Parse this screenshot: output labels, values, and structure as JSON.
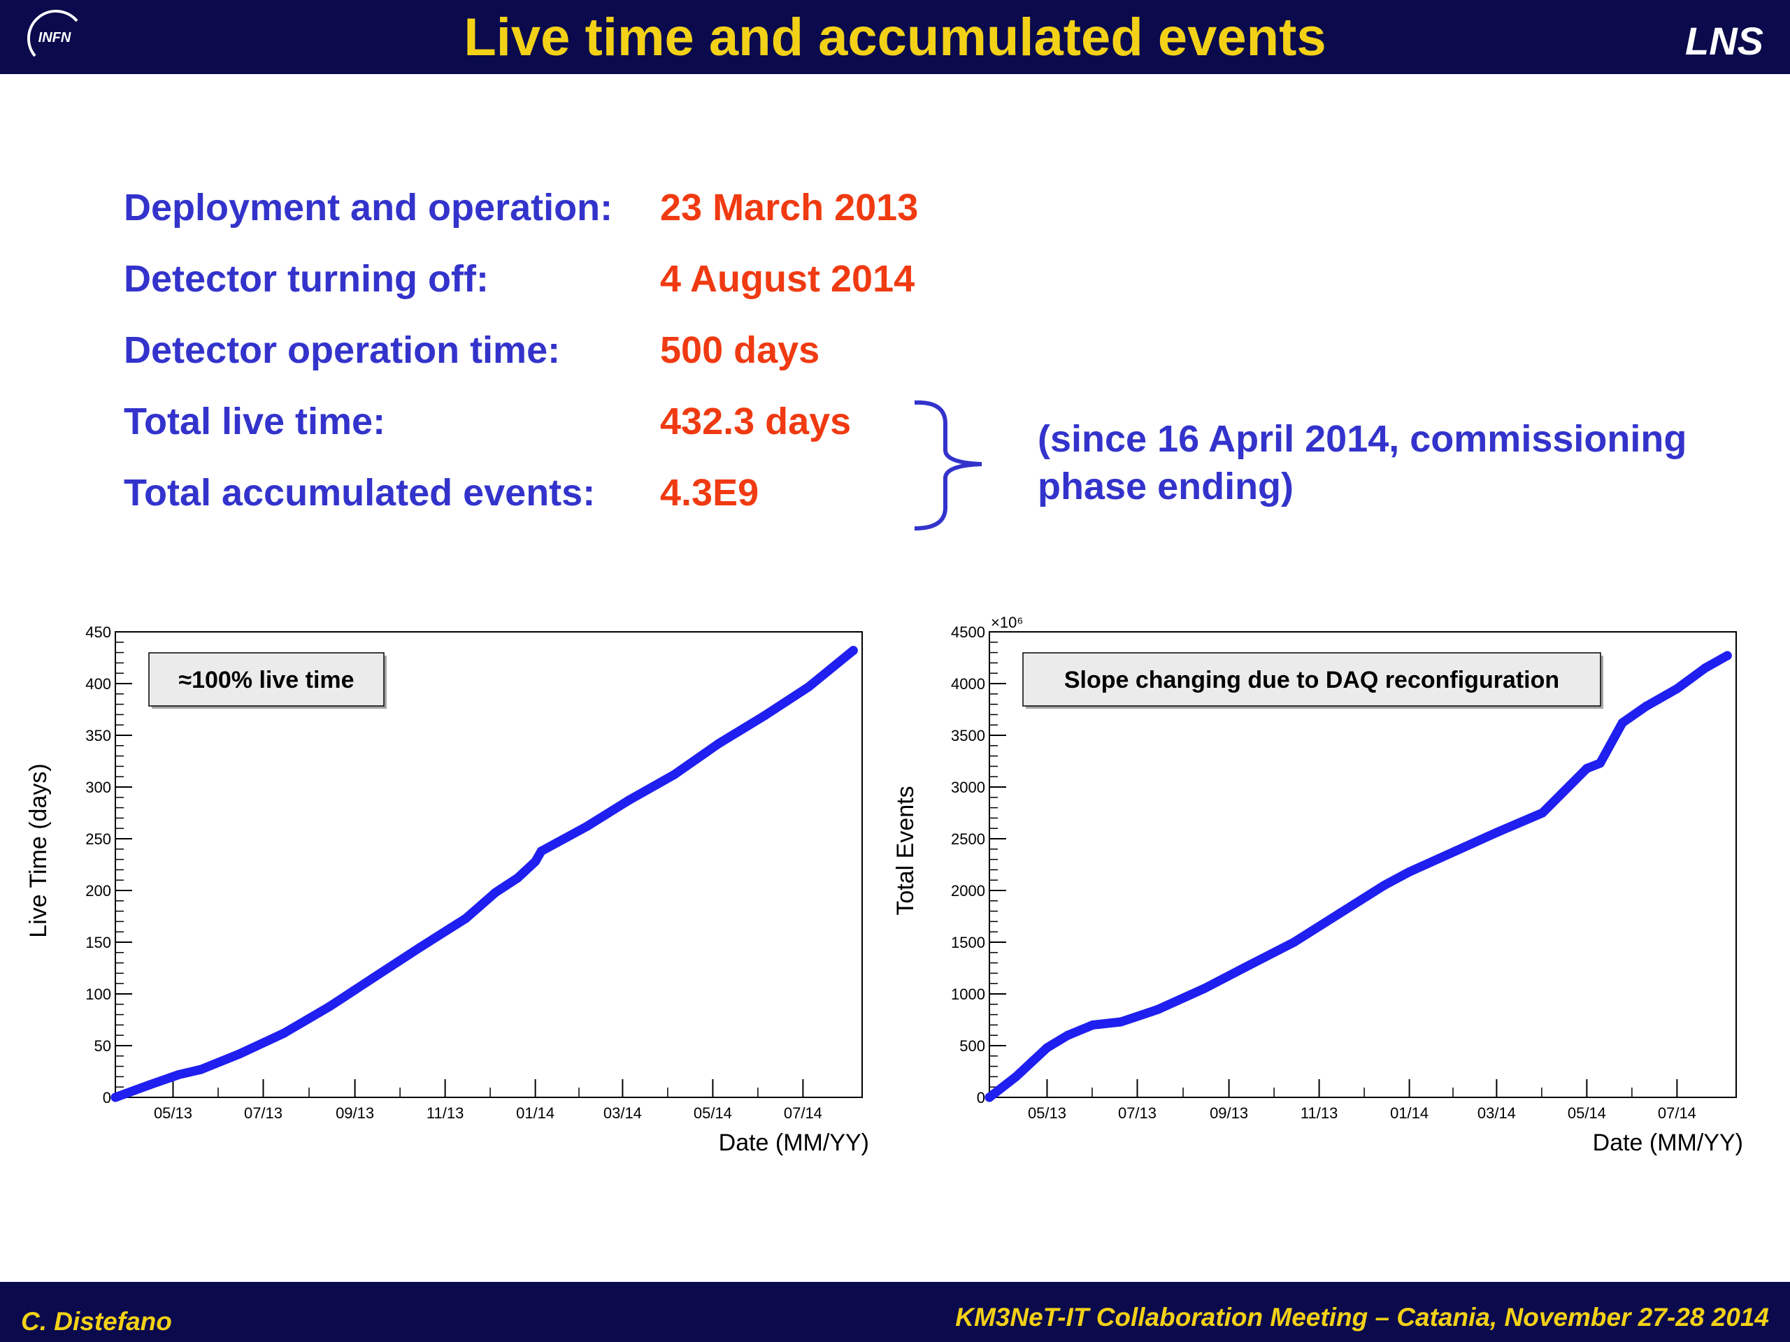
{
  "header": {
    "title": "Live time and accumulated events",
    "logo_text": "INFN",
    "lab": "LNS"
  },
  "summary": [
    {
      "label": "Deployment and operation:",
      "value": "23 March 2013"
    },
    {
      "label": "Detector turning off:",
      "value": "4 August 2014"
    },
    {
      "label": "Detector operation time:",
      "value": "500 days"
    },
    {
      "label": "Total live time:",
      "value": "432.3 days"
    },
    {
      "label": "Total accumulated events:",
      "value": "4.3E9"
    }
  ],
  "note": "(since 16 April 2014, commissioning phase ending)",
  "footer": {
    "author": "C. Distefano",
    "meeting": "KM3NeT-IT Collaboration Meeting – Catania, November 27-28 2014"
  },
  "colors": {
    "bar": "#0a0a4c",
    "title": "#f3d117",
    "label": "#3333cc",
    "value": "#f03a12",
    "series": "#1f1ff0"
  },
  "chart_data": [
    {
      "type": "line",
      "ylabel": "Live Time (days)",
      "xlabel": "Date (MM/YY)",
      "annotation": "≈100% live time",
      "xlim": [
        "2013-03-23",
        "2014-08-10"
      ],
      "ylim": [
        0,
        450
      ],
      "yticks": [
        0,
        50,
        100,
        150,
        200,
        250,
        300,
        350,
        400,
        450
      ],
      "xticks": [
        {
          "label": "05/13",
          "date": "2013-05-01"
        },
        {
          "label": "07/13",
          "date": "2013-07-01"
        },
        {
          "label": "09/13",
          "date": "2013-09-01"
        },
        {
          "label": "11/13",
          "date": "2013-11-01"
        },
        {
          "label": "01/14",
          "date": "2014-01-01"
        },
        {
          "label": "03/14",
          "date": "2014-03-01"
        },
        {
          "label": "05/14",
          "date": "2014-05-01"
        },
        {
          "label": "07/14",
          "date": "2014-07-01"
        }
      ],
      "series": [
        {
          "x": [
            "2013-03-23",
            "2013-04-15",
            "2013-05-05",
            "2013-05-20",
            "2013-06-15",
            "2013-07-15",
            "2013-08-15",
            "2013-09-15",
            "2013-10-15",
            "2013-11-15",
            "2013-12-05",
            "2013-12-20",
            "2014-01-01",
            "2014-01-05",
            "2014-02-05",
            "2014-03-05",
            "2014-04-05",
            "2014-05-05",
            "2014-06-05",
            "2014-07-05",
            "2014-08-04"
          ],
          "y": [
            0,
            12,
            22,
            27,
            42,
            62,
            88,
            117,
            145,
            173,
            198,
            212,
            228,
            238,
            262,
            287,
            312,
            342,
            369,
            397,
            432
          ]
        }
      ]
    },
    {
      "type": "line",
      "ylabel": "Total Events",
      "xlabel": "Date (MM/YY)",
      "annotation": "Slope changing due to DAQ reconfiguration",
      "yscale_label": "×10⁶",
      "xlim": [
        "2013-03-23",
        "2014-08-10"
      ],
      "ylim": [
        0,
        4500
      ],
      "yticks": [
        0,
        500,
        1000,
        1500,
        2000,
        2500,
        3000,
        3500,
        4000,
        4500
      ],
      "xticks": [
        {
          "label": "05/13",
          "date": "2013-05-01"
        },
        {
          "label": "07/13",
          "date": "2013-07-01"
        },
        {
          "label": "09/13",
          "date": "2013-09-01"
        },
        {
          "label": "11/13",
          "date": "2013-11-01"
        },
        {
          "label": "01/14",
          "date": "2014-01-01"
        },
        {
          "label": "03/14",
          "date": "2014-03-01"
        },
        {
          "label": "05/14",
          "date": "2014-05-01"
        },
        {
          "label": "07/14",
          "date": "2014-07-01"
        }
      ],
      "series": [
        {
          "x": [
            "2013-03-23",
            "2013-04-10",
            "2013-05-01",
            "2013-05-15",
            "2013-06-01",
            "2013-06-20",
            "2013-07-15",
            "2013-08-15",
            "2013-09-15",
            "2013-10-15",
            "2013-11-15",
            "2013-12-15",
            "2014-01-01",
            "2014-02-01",
            "2014-03-01",
            "2014-04-01",
            "2014-04-15",
            "2014-05-01",
            "2014-05-10",
            "2014-05-25",
            "2014-06-10",
            "2014-07-01",
            "2014-07-20",
            "2014-08-04"
          ],
          "y": [
            0,
            200,
            480,
            600,
            700,
            730,
            850,
            1050,
            1280,
            1500,
            1780,
            2050,
            2180,
            2380,
            2560,
            2750,
            2950,
            3180,
            3230,
            3620,
            3780,
            3950,
            4150,
            4270
          ]
        }
      ]
    }
  ]
}
